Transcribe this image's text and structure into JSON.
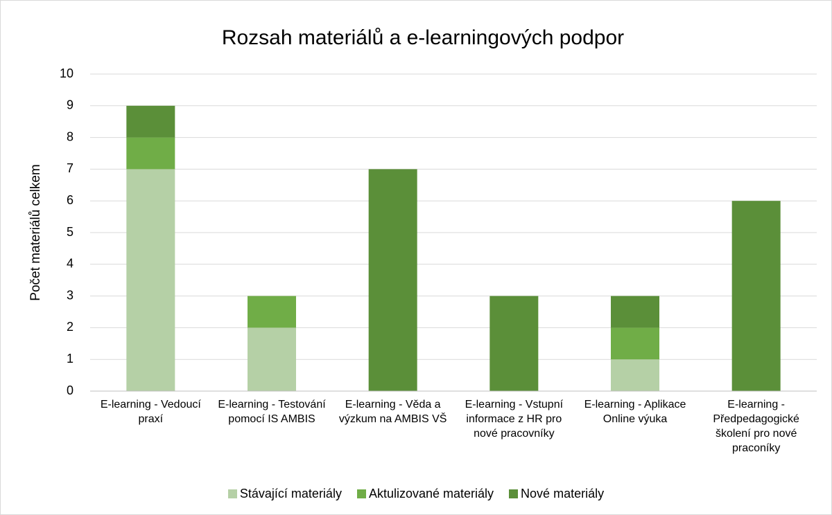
{
  "chart_data": {
    "type": "stacked_bar",
    "title": "Rozsah materiálů a e-learningových podpor",
    "y_label": "Počet materiálů celkem",
    "categories": [
      "E-learning - Vedoucí praxí",
      "E-learning - Testování pomocí IS AMBIS",
      "E-learning - Věda a výzkum na AMBIS VŠ",
      "E-learning - Vstupní informace z HR pro nové pracovníky",
      "E-learning - Aplikace Online výuka",
      "E-learning - Předpedagogické školení pro nové praconíky"
    ],
    "series": [
      {
        "name": "Stávající materiály",
        "color": "#b5d0a6",
        "values": [
          7,
          2,
          0,
          0,
          1,
          0
        ]
      },
      {
        "name": "Aktulizované materiály",
        "color": "#70ad47",
        "values": [
          1,
          1,
          0,
          0,
          1,
          0
        ]
      },
      {
        "name": "Nové materiály",
        "color": "#5b8f39",
        "values": [
          1,
          0,
          7,
          3,
          1,
          6
        ]
      }
    ],
    "ylim": [
      0,
      10
    ],
    "yticks": [
      0,
      1,
      2,
      3,
      4,
      5,
      6,
      7,
      8,
      9,
      10
    ],
    "grid": true,
    "legend": "bottom"
  }
}
